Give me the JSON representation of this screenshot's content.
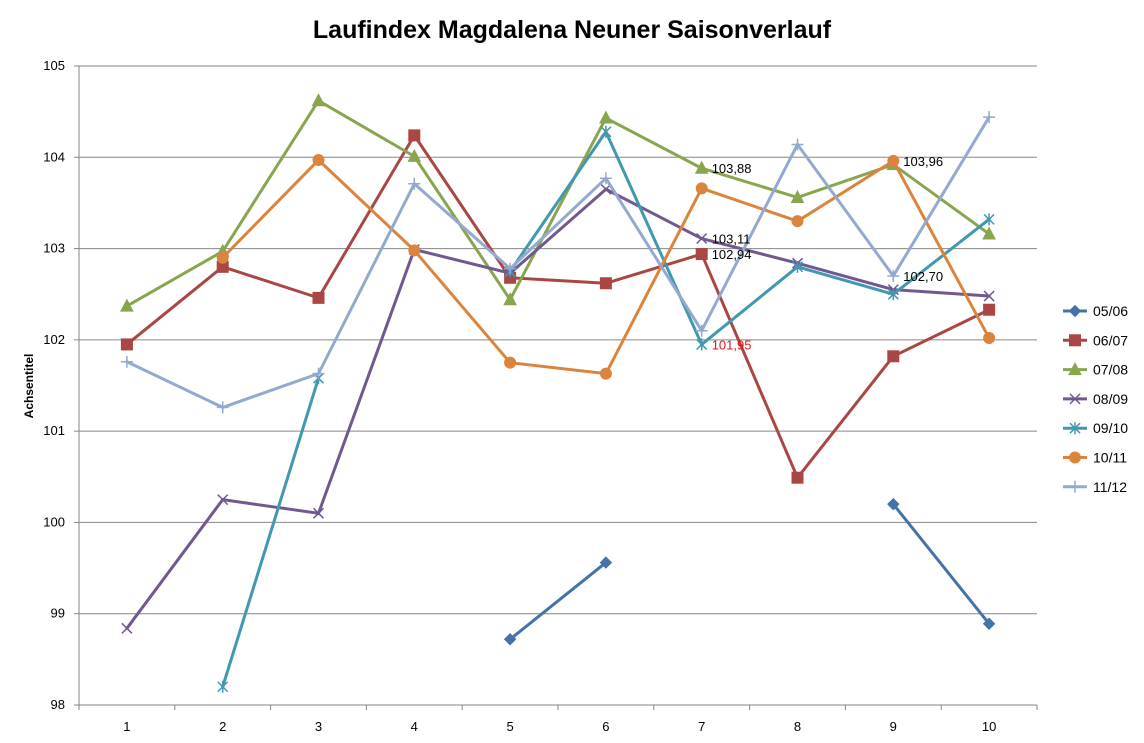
{
  "chart_data": {
    "type": "line",
    "title": "Laufindex Magdalena Neuner Saisonverlauf",
    "xlabel": "",
    "ylabel": "Achsentitel",
    "x": [
      1,
      2,
      3,
      4,
      5,
      6,
      7,
      8,
      9,
      10
    ],
    "ylim": [
      98,
      105
    ],
    "yticks": [
      98,
      99,
      100,
      101,
      102,
      103,
      104,
      105
    ],
    "grid": true,
    "legend_position": "right",
    "series": [
      {
        "name": "05/06",
        "color": "#4572A7",
        "marker": "diamond",
        "values": [
          null,
          null,
          null,
          null,
          98.72,
          99.56,
          null,
          null,
          100.2,
          98.89
        ]
      },
      {
        "name": "06/07",
        "color": "#AA4643",
        "marker": "square",
        "values": [
          101.95,
          102.8,
          102.46,
          104.24,
          102.68,
          102.62,
          102.94,
          100.49,
          101.82,
          102.33
        ]
      },
      {
        "name": "07/08",
        "color": "#89A54E",
        "marker": "triangle",
        "values": [
          102.37,
          102.97,
          104.62,
          104.01,
          102.44,
          104.43,
          103.88,
          103.56,
          103.92,
          103.16
        ]
      },
      {
        "name": "08/09",
        "color": "#71588F",
        "marker": "x",
        "values": [
          98.84,
          100.25,
          100.1,
          102.99,
          102.73,
          103.65,
          103.11,
          102.84,
          102.55,
          102.48
        ]
      },
      {
        "name": "09/10",
        "color": "#4198AF",
        "marker": "star",
        "values": [
          null,
          98.2,
          101.58,
          null,
          102.75,
          104.28,
          101.95,
          102.8,
          102.5,
          103.32
        ]
      },
      {
        "name": "10/11",
        "color": "#DB843D",
        "marker": "circle",
        "values": [
          null,
          102.9,
          103.97,
          102.98,
          101.75,
          101.63,
          103.66,
          103.3,
          103.96,
          102.02
        ]
      },
      {
        "name": "11/12",
        "color": "#93A9CF",
        "marker": "plus",
        "values": [
          101.76,
          101.26,
          101.63,
          103.71,
          102.78,
          103.77,
          102.1,
          104.14,
          102.7,
          104.44
        ]
      }
    ],
    "annotations": [
      {
        "text": "103,88",
        "x": 7,
        "y": 103.88,
        "color": "#000000"
      },
      {
        "text": "103,11",
        "x": 7,
        "y": 103.11,
        "color": "#000000"
      },
      {
        "text": "102,94",
        "x": 7,
        "y": 102.94,
        "color": "#000000"
      },
      {
        "text": "101,95",
        "x": 7,
        "y": 101.95,
        "color": "#E8141A"
      },
      {
        "text": "103,96",
        "x": 9,
        "y": 103.96,
        "color": "#000000"
      },
      {
        "text": "102,70",
        "x": 9,
        "y": 102.7,
        "color": "#000000"
      }
    ],
    "colors": {
      "gridline": "#868686",
      "axis": "#868686",
      "background": "#ffffff"
    }
  }
}
